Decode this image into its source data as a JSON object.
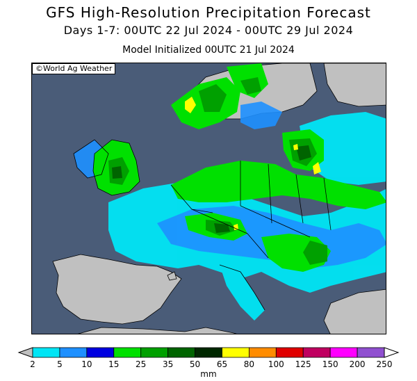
{
  "title": "GFS High-Resolution Precipitation Forecast",
  "subtitle": "Days 1-7: 00UTC 22 Jul 2024 - 00UTC 29 Jul 2024",
  "init": "Model Initialized 00UTC 21 Jul 2024",
  "credit": "©World Ag Weather",
  "colors": {
    "ocean": "#4a5c78",
    "land_dry": "#c0c0c0",
    "border": "#000000"
  },
  "legend": {
    "unit": "mm",
    "ticks": [
      "2",
      "5",
      "10",
      "15",
      "25",
      "35",
      "50",
      "65",
      "80",
      "100",
      "125",
      "150",
      "200",
      "250"
    ],
    "colors": [
      "#00e5f5",
      "#1e90ff",
      "#0000e0",
      "#00e000",
      "#00a000",
      "#006400",
      "#002800",
      "#ffff00",
      "#ff8c00",
      "#e00000",
      "#c00060",
      "#ff00ff",
      "#9050d0"
    ]
  }
}
